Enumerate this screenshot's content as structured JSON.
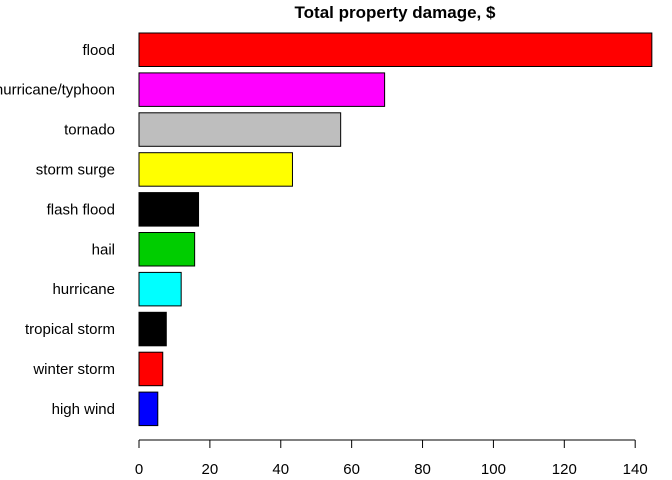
{
  "chart_data": {
    "type": "bar",
    "orientation": "horizontal",
    "title": "Total property damage, $",
    "xlabel": "",
    "ylabel": "",
    "categories": [
      "flood",
      "hurricane/typhoon",
      "tornado",
      "storm surge",
      "flash flood",
      "hail",
      "hurricane",
      "tropical storm",
      "winter storm",
      "high wind"
    ],
    "values": [
      144.7,
      69.3,
      56.9,
      43.3,
      16.8,
      15.7,
      11.9,
      7.7,
      6.7,
      5.3
    ],
    "colors": [
      "#FF0000",
      "#FF00FF",
      "#BEBEBE",
      "#FFFF00",
      "#000000",
      "#00CD00",
      "#00FFFF",
      "#000000",
      "#FF0000",
      "#0000FF"
    ],
    "xlim": [
      0,
      140
    ],
    "xticks": [
      0,
      20,
      40,
      60,
      80,
      100,
      120,
      140
    ],
    "grid": false,
    "legend": "none"
  }
}
